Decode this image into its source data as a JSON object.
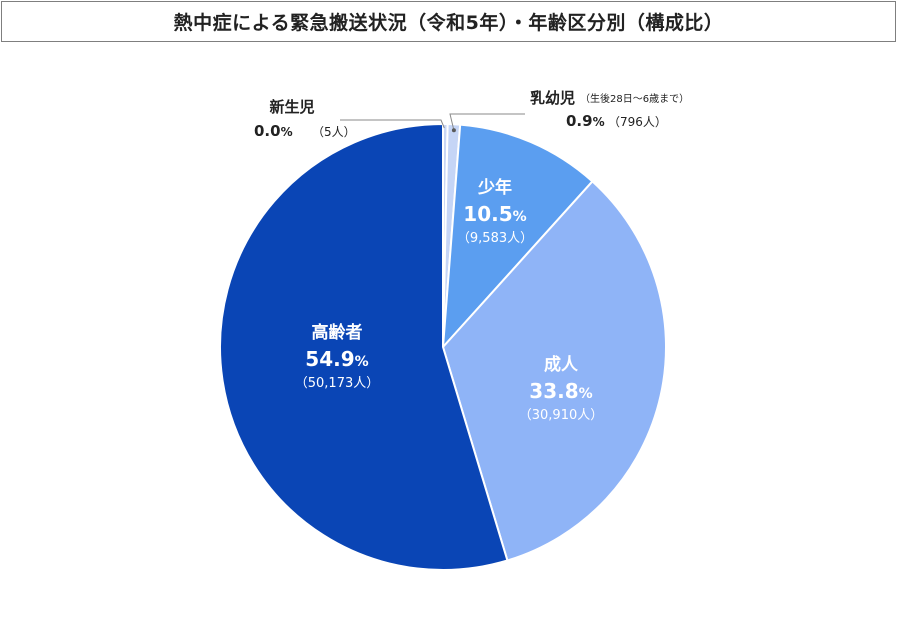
{
  "title": "熱中症による緊急搬送状況（令和5年）・年齢区分別（構成比）",
  "chart_data": {
    "type": "pie",
    "title": "熱中症による緊急搬送状況（令和5年）・年齢区分別（構成比）",
    "slices": [
      {
        "name": "新生児",
        "note": "",
        "percent": 0.0,
        "pct_label": "0.0",
        "count_label": "（5人）",
        "color": "#c9d7f5",
        "label_style": "outside-left"
      },
      {
        "name": "乳幼児",
        "note": "（生後28日〜6歳まで）",
        "percent": 0.9,
        "pct_label": "0.9",
        "count_label": "（796人）",
        "color": "#c5d5f6",
        "label_style": "outside-right"
      },
      {
        "name": "少年",
        "note": "",
        "percent": 10.5,
        "pct_label": "10.5",
        "count_label": "（9,583人）",
        "color": "#5b9ef0",
        "label_style": "inside"
      },
      {
        "name": "成人",
        "note": "",
        "percent": 33.8,
        "pct_label": "33.8",
        "count_label": "（30,910人）",
        "color": "#8fb4f7",
        "label_style": "inside"
      },
      {
        "name": "高齢者",
        "note": "",
        "percent": 54.9,
        "pct_label": "54.9",
        "count_label": "（50,173人）",
        "color": "#0a45b5",
        "label_style": "inside"
      }
    ],
    "unit": "%",
    "label_color_inside": "#ffffff",
    "label_color_outside": "#222222",
    "leader_color": "#8a8a8a"
  }
}
